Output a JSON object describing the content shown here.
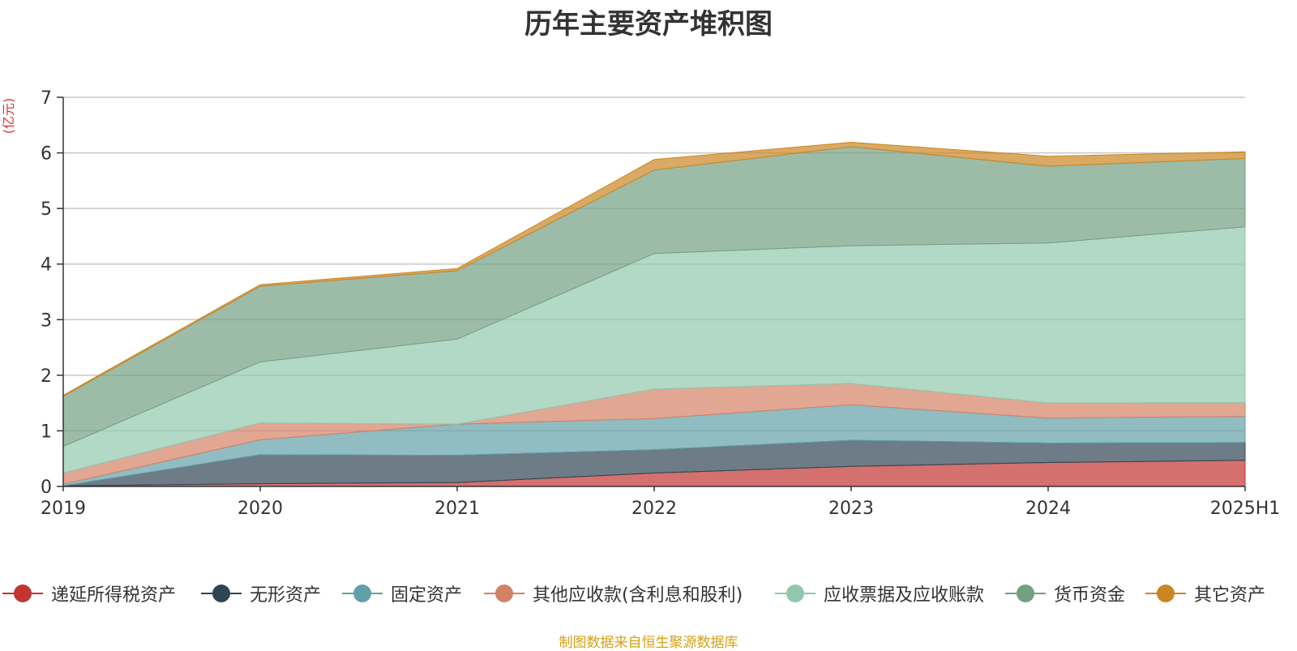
{
  "chart_data": {
    "type": "area",
    "stacked": true,
    "title": "历年主要资产堆积图",
    "ylabel": "(亿元)",
    "xlabel": "",
    "categories": [
      "2019",
      "2020",
      "2021",
      "2022",
      "2023",
      "2024",
      "2025H1"
    ],
    "ylim": [
      0,
      7
    ],
    "yticks": [
      "0",
      "1",
      "2",
      "3",
      "4",
      "5",
      "6",
      "7"
    ],
    "grid": true,
    "legend_position": "bottom",
    "series": [
      {
        "name": "递延所得税资产",
        "color": "#c23531",
        "values": [
          0.01,
          0.05,
          0.07,
          0.24,
          0.36,
          0.43,
          0.47
        ]
      },
      {
        "name": "无形资产",
        "color": "#2f4554",
        "values": [
          0.0,
          0.52,
          0.49,
          0.42,
          0.47,
          0.35,
          0.32
        ]
      },
      {
        "name": "固定资产",
        "color": "#61a0a8",
        "values": [
          0.03,
          0.27,
          0.56,
          0.56,
          0.64,
          0.45,
          0.47
        ]
      },
      {
        "name": "其他应收款(含利息和股利)",
        "color": "#d48265",
        "values": [
          0.2,
          0.3,
          0.0,
          0.53,
          0.38,
          0.27,
          0.25
        ]
      },
      {
        "name": "应收票据及应收账款",
        "color": "#91c7ae",
        "values": [
          0.48,
          1.1,
          1.53,
          2.44,
          2.48,
          2.88,
          3.16
        ]
      },
      {
        "name": "货币资金",
        "color": "#749f83",
        "values": [
          0.9,
          1.36,
          1.23,
          1.5,
          1.78,
          1.38,
          1.23
        ]
      },
      {
        "name": "其它资产",
        "color": "#ca8622",
        "values": [
          0.02,
          0.03,
          0.04,
          0.19,
          0.08,
          0.18,
          0.12
        ]
      }
    ]
  },
  "source_note": "制图数据来自恒生聚源数据库"
}
